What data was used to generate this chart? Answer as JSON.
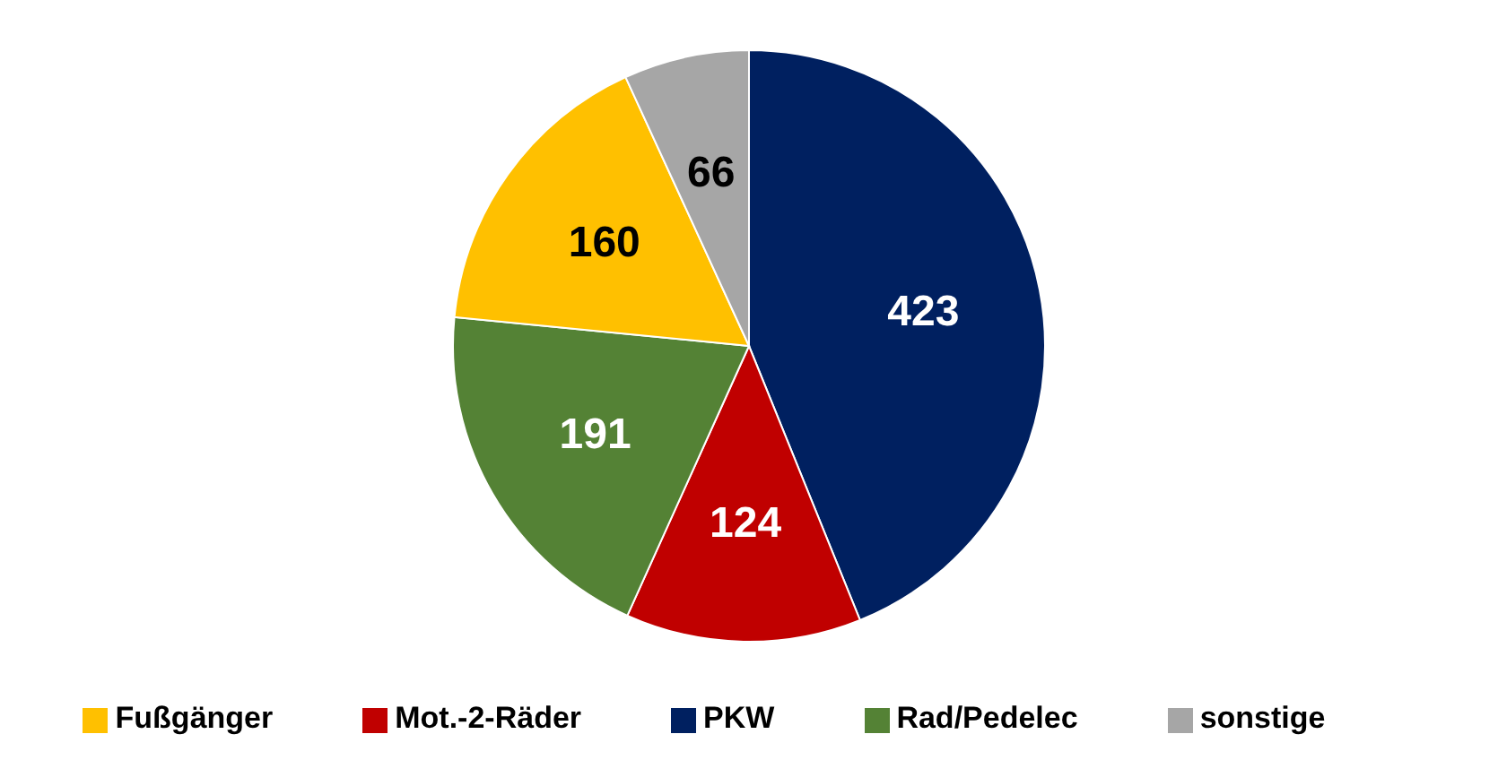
{
  "chart_data": {
    "type": "pie",
    "categories": [
      "PKW",
      "Mot.-2-Räder",
      "Rad/Pedelec",
      "Fußgänger",
      "sonstige"
    ],
    "values": [
      423,
      124,
      191,
      160,
      66
    ],
    "colors": [
      "#002060",
      "#c00000",
      "#548235",
      "#ffc000",
      "#a6a6a6"
    ],
    "data_labels": true,
    "legend": "bottom"
  }
}
